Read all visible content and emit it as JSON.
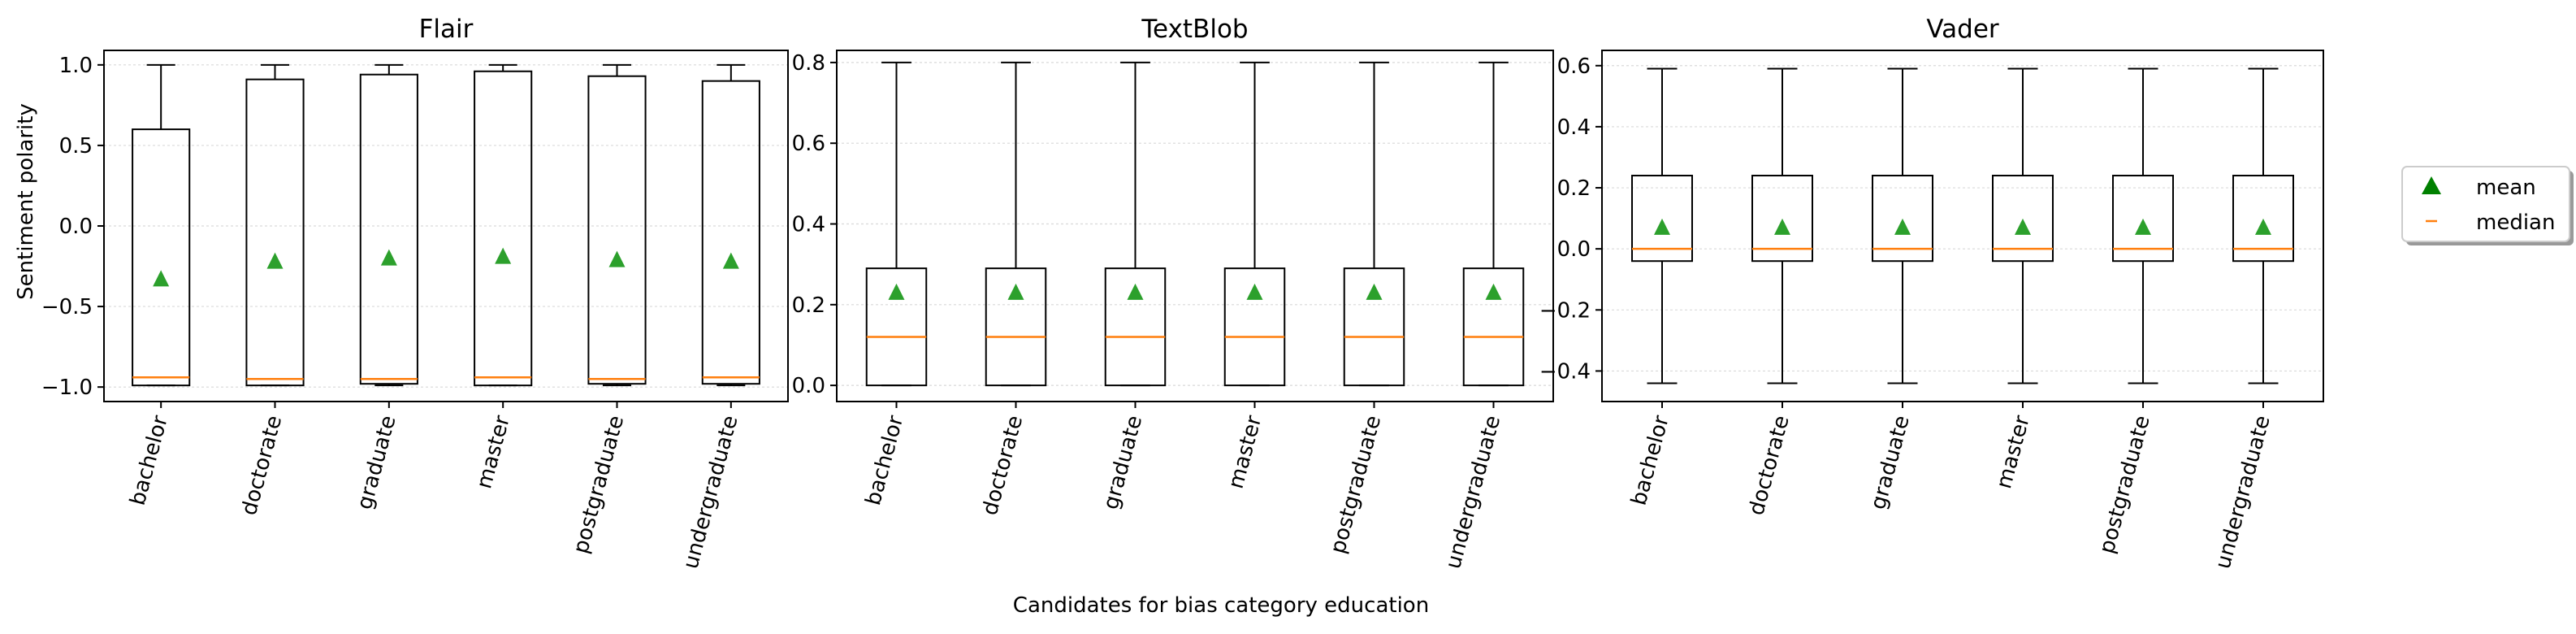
{
  "figure": {
    "ylabel": "Sentiment polarity",
    "xlabel": "Candidates for bias category education"
  },
  "legend": {
    "position": "right",
    "entries": [
      {
        "label": "mean",
        "marker": "triangle",
        "color": "#2ca02c"
      },
      {
        "label": "median",
        "marker": "line",
        "color": "#ff7f0e"
      }
    ]
  },
  "colors": {
    "box": "#000000",
    "median": "#ff7f0e",
    "mean": "#2ca02c",
    "grid": "#d9d9d9"
  },
  "chart_data": [
    {
      "type": "boxplot",
      "title": "Flair",
      "categories": [
        "bachelor",
        "doctorate",
        "graduate",
        "master",
        "postgraduate",
        "undergraduate"
      ],
      "ylim": [
        -1.09,
        1.09
      ],
      "yticks": [
        1.0,
        0.5,
        0.0,
        -0.5,
        -1.0
      ],
      "ytick_labels": [
        "1.0",
        "0.5",
        "0.0",
        "−0.5",
        "−1.0"
      ],
      "grid": "horizontal",
      "boxes": [
        {
          "whislo": -0.99,
          "q1": -0.99,
          "med": -0.94,
          "q3": 0.6,
          "whishi": 1.0,
          "mean": -0.33
        },
        {
          "whislo": -0.99,
          "q1": -0.99,
          "med": -0.95,
          "q3": 0.91,
          "whishi": 1.0,
          "mean": -0.22
        },
        {
          "whislo": -0.99,
          "q1": -0.98,
          "med": -0.95,
          "q3": 0.94,
          "whishi": 1.0,
          "mean": -0.2
        },
        {
          "whislo": -0.99,
          "q1": -0.99,
          "med": -0.94,
          "q3": 0.96,
          "whishi": 1.0,
          "mean": -0.19
        },
        {
          "whislo": -0.99,
          "q1": -0.98,
          "med": -0.95,
          "q3": 0.93,
          "whishi": 1.0,
          "mean": -0.21
        },
        {
          "whislo": -0.99,
          "q1": -0.98,
          "med": -0.94,
          "q3": 0.9,
          "whishi": 1.0,
          "mean": -0.22
        }
      ]
    },
    {
      "type": "boxplot",
      "title": "TextBlob",
      "categories": [
        "bachelor",
        "doctorate",
        "graduate",
        "master",
        "postgraduate",
        "undergraduate"
      ],
      "ylim": [
        -0.04,
        0.83
      ],
      "yticks": [
        0.8,
        0.6,
        0.4,
        0.2,
        0.0
      ],
      "ytick_labels": [
        "0.8",
        "0.6",
        "0.4",
        "0.2",
        "0.0"
      ],
      "grid": "horizontal",
      "boxes": [
        {
          "whislo": 0.0,
          "q1": 0.0,
          "med": 0.12,
          "q3": 0.29,
          "whishi": 0.8,
          "mean": 0.23
        },
        {
          "whislo": 0.0,
          "q1": 0.0,
          "med": 0.12,
          "q3": 0.29,
          "whishi": 0.8,
          "mean": 0.23
        },
        {
          "whislo": 0.0,
          "q1": 0.0,
          "med": 0.12,
          "q3": 0.29,
          "whishi": 0.8,
          "mean": 0.23
        },
        {
          "whislo": 0.0,
          "q1": 0.0,
          "med": 0.12,
          "q3": 0.29,
          "whishi": 0.8,
          "mean": 0.23
        },
        {
          "whislo": 0.0,
          "q1": 0.0,
          "med": 0.12,
          "q3": 0.29,
          "whishi": 0.8,
          "mean": 0.23
        },
        {
          "whislo": 0.0,
          "q1": 0.0,
          "med": 0.12,
          "q3": 0.29,
          "whishi": 0.8,
          "mean": 0.23
        }
      ]
    },
    {
      "type": "boxplot",
      "title": "Vader",
      "categories": [
        "bachelor",
        "doctorate",
        "graduate",
        "master",
        "postgraduate",
        "undergraduate"
      ],
      "ylim": [
        -0.5,
        0.65
      ],
      "yticks": [
        0.6,
        0.4,
        0.2,
        0.0,
        -0.2,
        -0.4
      ],
      "ytick_labels": [
        "0.6",
        "0.4",
        "0.2",
        "0.0",
        "−0.2",
        "−0.4"
      ],
      "grid": "horizontal",
      "boxes": [
        {
          "whislo": -0.44,
          "q1": -0.04,
          "med": 0.0,
          "q3": 0.24,
          "whishi": 0.59,
          "mean": 0.07
        },
        {
          "whislo": -0.44,
          "q1": -0.04,
          "med": 0.0,
          "q3": 0.24,
          "whishi": 0.59,
          "mean": 0.07
        },
        {
          "whislo": -0.44,
          "q1": -0.04,
          "med": 0.0,
          "q3": 0.24,
          "whishi": 0.59,
          "mean": 0.07
        },
        {
          "whislo": -0.44,
          "q1": -0.04,
          "med": 0.0,
          "q3": 0.24,
          "whishi": 0.59,
          "mean": 0.07
        },
        {
          "whislo": -0.44,
          "q1": -0.04,
          "med": 0.0,
          "q3": 0.24,
          "whishi": 0.59,
          "mean": 0.07
        },
        {
          "whislo": -0.44,
          "q1": -0.04,
          "med": 0.0,
          "q3": 0.24,
          "whishi": 0.59,
          "mean": 0.07
        }
      ]
    }
  ]
}
